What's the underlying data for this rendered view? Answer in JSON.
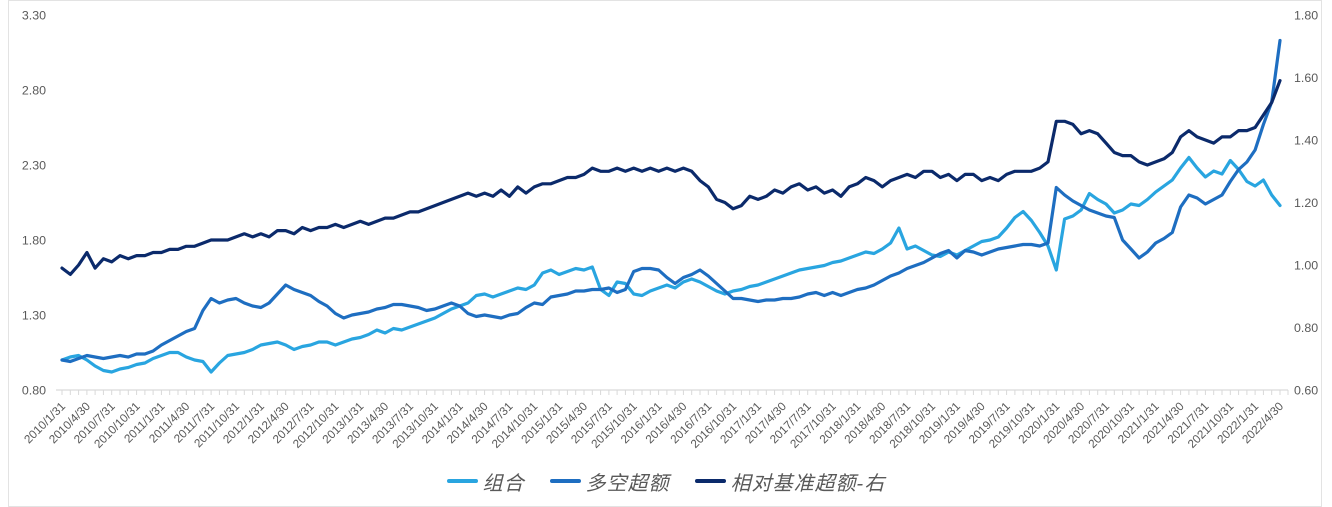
{
  "colors": {
    "series_light_blue": "#29a5e0",
    "series_medium_blue": "#1e6ec1",
    "series_navy": "#0b2a6b",
    "axis_line": "#d9d9d9",
    "tick_text": "#595959",
    "panel_border": "#e3e3e3",
    "background": "#ffffff"
  },
  "chart_data": {
    "type": "line",
    "title": "",
    "grid": false,
    "legend_position": "bottom",
    "x_label_every_n_points": 3,
    "x_labels": [
      "2010/1/31",
      "2010/4/30",
      "2010/7/31",
      "2010/10/31",
      "2011/1/31",
      "2011/4/30",
      "2011/7/31",
      "2011/10/31",
      "2012/1/31",
      "2012/4/30",
      "2012/7/31",
      "2012/10/31",
      "2013/1/31",
      "2013/4/30",
      "2013/7/31",
      "2013/10/31",
      "2014/1/31",
      "2014/4/30",
      "2014/7/31",
      "2014/10/31",
      "2015/1/31",
      "2015/4/30",
      "2015/7/31",
      "2015/10/31",
      "2016/1/31",
      "2016/4/30",
      "2016/7/31",
      "2016/10/31",
      "2017/1/31",
      "2017/4/30",
      "2017/7/31",
      "2017/10/31",
      "2018/1/31",
      "2018/4/30",
      "2018/7/31",
      "2018/10/31",
      "2019/1/31",
      "2019/4/30",
      "2019/7/31",
      "2019/10/31",
      "2020/1/31",
      "2020/4/30",
      "2020/7/31",
      "2020/10/31",
      "2021/1/31",
      "2021/4/30",
      "2021/7/31",
      "2021/10/31",
      "2022/1/31",
      "2022/4/30"
    ],
    "left_axis": {
      "min": 0.8,
      "max": 3.3,
      "ticks": [
        "3.30",
        "2.80",
        "2.30",
        "1.80",
        "1.30",
        "0.80"
      ]
    },
    "right_axis": {
      "min": 0.6,
      "max": 1.8,
      "ticks": [
        "1.80",
        "1.60",
        "1.40",
        "1.20",
        "1.00",
        "0.80",
        "0.60"
      ]
    },
    "series": [
      {
        "name": "组合",
        "axis": "left",
        "color": "#29a5e0",
        "values": [
          1.0,
          1.02,
          1.03,
          1.0,
          0.96,
          0.93,
          0.92,
          0.94,
          0.95,
          0.97,
          0.98,
          1.01,
          1.03,
          1.05,
          1.05,
          1.02,
          1.0,
          0.99,
          0.92,
          0.98,
          1.03,
          1.04,
          1.05,
          1.07,
          1.1,
          1.11,
          1.12,
          1.1,
          1.07,
          1.09,
          1.1,
          1.12,
          1.12,
          1.1,
          1.12,
          1.14,
          1.15,
          1.17,
          1.2,
          1.18,
          1.21,
          1.2,
          1.22,
          1.24,
          1.26,
          1.28,
          1.31,
          1.34,
          1.36,
          1.38,
          1.43,
          1.44,
          1.42,
          1.44,
          1.46,
          1.48,
          1.47,
          1.5,
          1.58,
          1.6,
          1.57,
          1.59,
          1.61,
          1.6,
          1.62,
          1.47,
          1.43,
          1.52,
          1.51,
          1.44,
          1.43,
          1.46,
          1.48,
          1.5,
          1.48,
          1.52,
          1.54,
          1.52,
          1.49,
          1.46,
          1.44,
          1.46,
          1.47,
          1.49,
          1.5,
          1.52,
          1.54,
          1.56,
          1.58,
          1.6,
          1.61,
          1.62,
          1.63,
          1.65,
          1.66,
          1.68,
          1.7,
          1.72,
          1.71,
          1.74,
          1.78,
          1.88,
          1.74,
          1.76,
          1.73,
          1.7,
          1.69,
          1.72,
          1.7,
          1.73,
          1.76,
          1.79,
          1.8,
          1.82,
          1.88,
          1.95,
          1.99,
          1.93,
          1.85,
          1.76,
          1.6,
          1.94,
          1.96,
          2.0,
          2.11,
          2.07,
          2.04,
          1.98,
          2.0,
          2.04,
          2.03,
          2.07,
          2.12,
          2.16,
          2.2,
          2.28,
          2.35,
          2.28,
          2.22,
          2.26,
          2.24,
          2.33,
          2.27,
          2.19,
          2.16,
          2.2,
          2.1,
          2.03
        ]
      },
      {
        "name": "多空超额",
        "axis": "left",
        "color": "#1e6ec1",
        "values": [
          1.0,
          0.99,
          1.01,
          1.03,
          1.02,
          1.01,
          1.02,
          1.03,
          1.02,
          1.04,
          1.04,
          1.06,
          1.1,
          1.13,
          1.16,
          1.19,
          1.21,
          1.33,
          1.41,
          1.38,
          1.4,
          1.41,
          1.38,
          1.36,
          1.35,
          1.38,
          1.44,
          1.5,
          1.47,
          1.45,
          1.43,
          1.39,
          1.36,
          1.31,
          1.28,
          1.3,
          1.31,
          1.32,
          1.34,
          1.35,
          1.37,
          1.37,
          1.36,
          1.35,
          1.33,
          1.34,
          1.36,
          1.38,
          1.36,
          1.31,
          1.29,
          1.3,
          1.29,
          1.28,
          1.3,
          1.31,
          1.35,
          1.38,
          1.37,
          1.42,
          1.43,
          1.44,
          1.46,
          1.46,
          1.47,
          1.47,
          1.48,
          1.45,
          1.47,
          1.59,
          1.61,
          1.61,
          1.6,
          1.55,
          1.51,
          1.55,
          1.57,
          1.6,
          1.56,
          1.51,
          1.46,
          1.41,
          1.41,
          1.4,
          1.39,
          1.4,
          1.4,
          1.41,
          1.41,
          1.42,
          1.44,
          1.45,
          1.43,
          1.45,
          1.43,
          1.45,
          1.47,
          1.48,
          1.5,
          1.53,
          1.56,
          1.58,
          1.61,
          1.63,
          1.65,
          1.68,
          1.71,
          1.73,
          1.68,
          1.73,
          1.72,
          1.7,
          1.72,
          1.74,
          1.75,
          1.76,
          1.77,
          1.77,
          1.76,
          1.78,
          2.15,
          2.1,
          2.06,
          2.03,
          2.0,
          1.98,
          1.96,
          1.95,
          1.8,
          1.74,
          1.68,
          1.72,
          1.78,
          1.81,
          1.85,
          2.02,
          2.1,
          2.08,
          2.04,
          2.07,
          2.1,
          2.19,
          2.27,
          2.32,
          2.4,
          2.57,
          2.72,
          3.13
        ]
      },
      {
        "name": "相对基准超额-右",
        "axis": "right",
        "color": "#0b2a6b",
        "values": [
          0.99,
          0.97,
          1.0,
          1.04,
          0.99,
          1.02,
          1.01,
          1.03,
          1.02,
          1.03,
          1.03,
          1.04,
          1.04,
          1.05,
          1.05,
          1.06,
          1.06,
          1.07,
          1.08,
          1.08,
          1.08,
          1.09,
          1.1,
          1.09,
          1.1,
          1.09,
          1.11,
          1.11,
          1.1,
          1.12,
          1.11,
          1.12,
          1.12,
          1.13,
          1.12,
          1.13,
          1.14,
          1.13,
          1.14,
          1.15,
          1.15,
          1.16,
          1.17,
          1.17,
          1.18,
          1.19,
          1.2,
          1.21,
          1.22,
          1.23,
          1.22,
          1.23,
          1.22,
          1.24,
          1.22,
          1.25,
          1.23,
          1.25,
          1.26,
          1.26,
          1.27,
          1.28,
          1.28,
          1.29,
          1.31,
          1.3,
          1.3,
          1.31,
          1.3,
          1.31,
          1.3,
          1.31,
          1.3,
          1.31,
          1.3,
          1.31,
          1.3,
          1.27,
          1.25,
          1.21,
          1.2,
          1.18,
          1.19,
          1.22,
          1.21,
          1.22,
          1.24,
          1.23,
          1.25,
          1.26,
          1.24,
          1.25,
          1.23,
          1.24,
          1.22,
          1.25,
          1.26,
          1.28,
          1.27,
          1.25,
          1.27,
          1.28,
          1.29,
          1.28,
          1.3,
          1.3,
          1.28,
          1.29,
          1.27,
          1.29,
          1.29,
          1.27,
          1.28,
          1.27,
          1.29,
          1.3,
          1.3,
          1.3,
          1.31,
          1.33,
          1.46,
          1.46,
          1.45,
          1.42,
          1.43,
          1.42,
          1.39,
          1.36,
          1.35,
          1.35,
          1.33,
          1.32,
          1.33,
          1.34,
          1.36,
          1.41,
          1.43,
          1.41,
          1.4,
          1.39,
          1.41,
          1.41,
          1.43,
          1.43,
          1.44,
          1.48,
          1.52,
          1.59
        ]
      }
    ]
  },
  "legend": {
    "items": [
      {
        "label": "组合"
      },
      {
        "label": "多空超额"
      },
      {
        "label": "相对基准超额-右"
      }
    ]
  }
}
